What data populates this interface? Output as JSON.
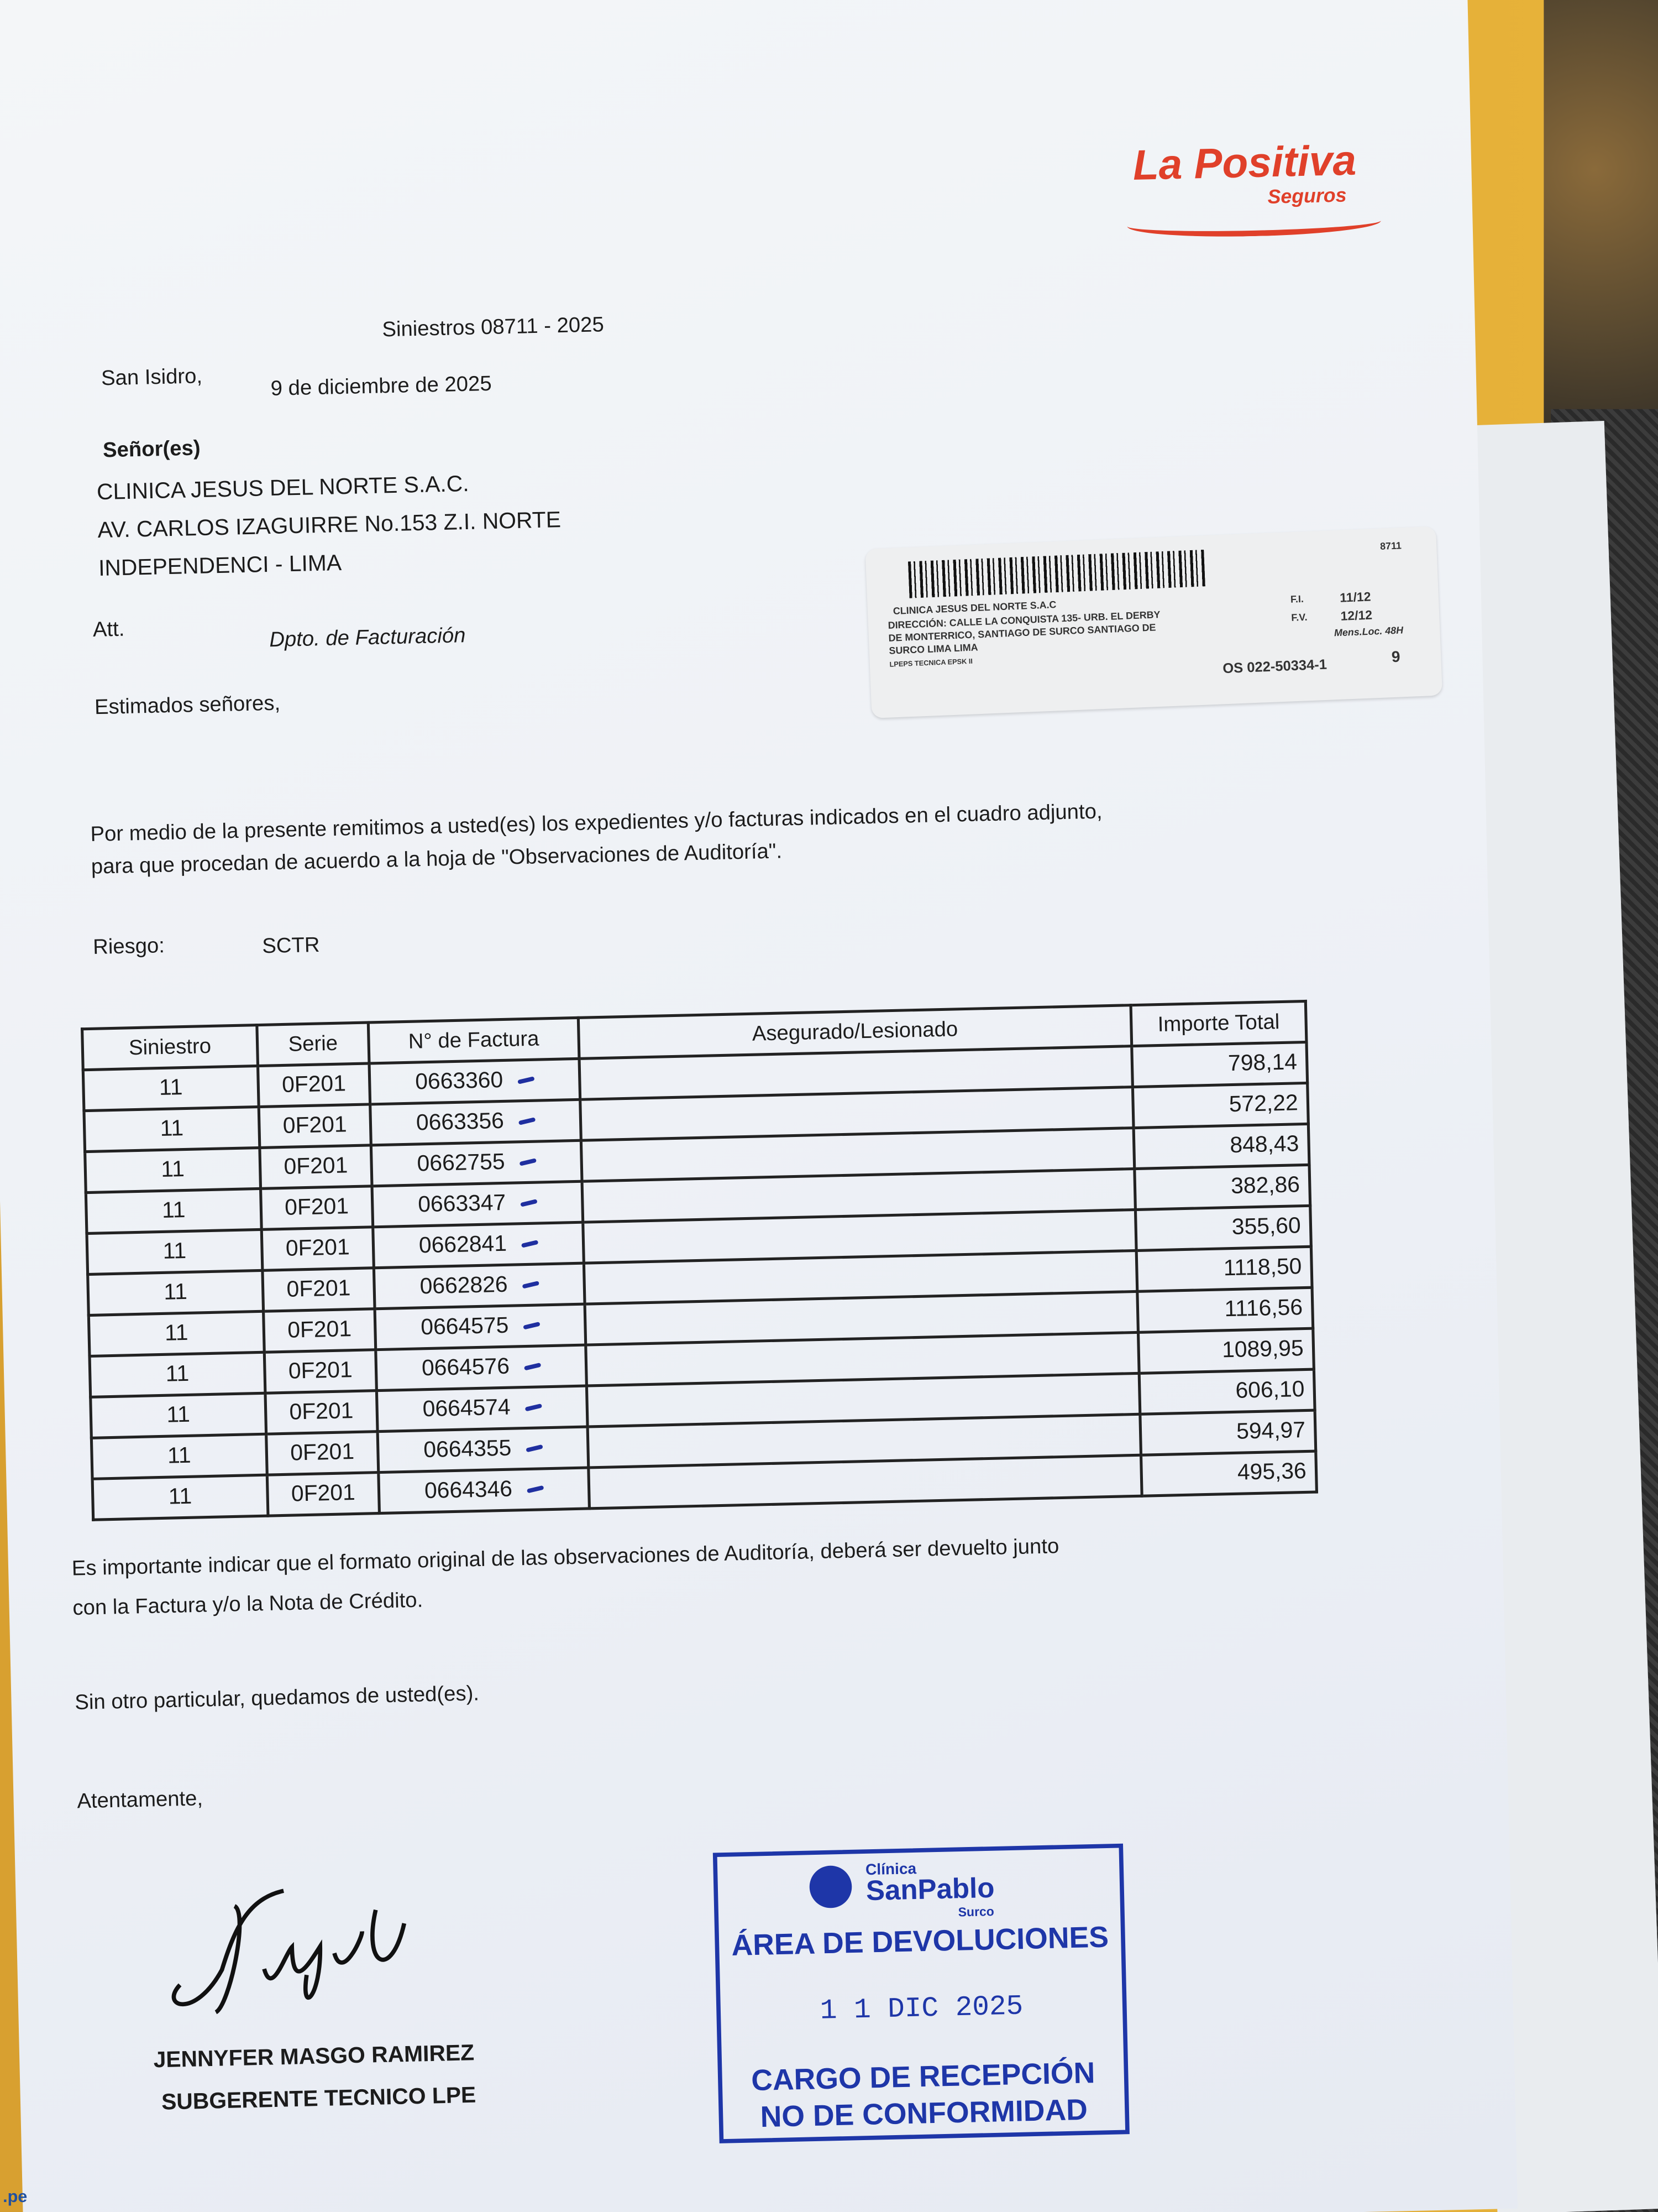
{
  "logo": {
    "brand": "La Positiva",
    "sub": "Seguros"
  },
  "letter": {
    "reference": "Siniestros 08711 - 2025",
    "place": "San Isidro,",
    "date": "9 de diciembre de 2025",
    "salutation_to": "Señor(es)",
    "recipient": [
      "CLINICA JESUS DEL NORTE S.A.C.",
      "AV. CARLOS IZAGUIRRE No.153 Z.I. NORTE",
      "INDEPENDENCI - LIMA"
    ],
    "att_label": "Att.",
    "att_value": "Dpto. de  Facturación",
    "greeting": "Estimados señores,",
    "body": [
      "Por medio de la presente remitimos a usted(es)  los expedientes y/o facturas  indicados en el cuadro adjunto,",
      "para que procedan de acuerdo a la hoja de \"Observaciones  de Auditoría\"."
    ],
    "risk_label": "Riesgo:",
    "risk_value": "SCTR",
    "note": [
      "Es importante indicar que el formato original de las observaciones de Auditoría, deberá  ser devuelto junto",
      "con la Factura y/o la  Nota de Crédito."
    ],
    "closing1": "Sin otro particular, quedamos de usted(es).",
    "closing2": "Atentamente,",
    "signer_name": "JENNYFER MASGO RAMIREZ",
    "signer_title": "SUBGERENTE TECNICO LPE"
  },
  "sticker": {
    "code": "8711",
    "clinic": "CLINICA JESUS DEL NORTE S.A.C",
    "address": [
      "DIRECCIÓN: CALLE LA CONQUISTA 135- URB. EL DERBY",
      "DE MONTERRICO, SANTIAGO DE SURCO  SANTIAGO DE",
      "SURCO LIMA LIMA"
    ],
    "footer": "LPEPS TECNICA EPSK II",
    "fi_label": "F.I.",
    "fi_value": "11/12",
    "fv_label": "F.V.",
    "fv_value": "12/12",
    "mens": "Mens.Loc. 48H",
    "os": "OS 022-50334-1",
    "num": "9"
  },
  "table": {
    "headers": [
      "Siniestro",
      "Serie",
      "N° de Factura",
      "Asegurado/Lesionado",
      "Importe Total"
    ],
    "rows": [
      [
        "11",
        "0F201",
        "0663360",
        "",
        "798,14"
      ],
      [
        "11",
        "0F201",
        "0663356",
        "",
        "572,22"
      ],
      [
        "11",
        "0F201",
        "0662755",
        "",
        "848,43"
      ],
      [
        "11",
        "0F201",
        "0663347",
        "",
        "382,86"
      ],
      [
        "11",
        "0F201",
        "0662841",
        "",
        "355,60"
      ],
      [
        "11",
        "0F201",
        "0662826",
        "",
        "1118,50"
      ],
      [
        "11",
        "0F201",
        "0664575",
        "",
        "1116,56"
      ],
      [
        "11",
        "0F201",
        "0664576",
        "",
        "1089,95"
      ],
      [
        "11",
        "0F201",
        "0664574",
        "",
        "606,10"
      ],
      [
        "11",
        "0F201",
        "0664355",
        "",
        "594,97"
      ],
      [
        "11",
        "0F201",
        "0664346",
        "",
        "495,36"
      ]
    ]
  },
  "stamp": {
    "clinic_small": "Clínica",
    "clinic_name": "SanPablo",
    "clinic_branch": "Surco",
    "area": "ÁREA DE DEVOLUCIONES",
    "date": "1 1  DIC  2025",
    "line1": "CARGO DE RECEPCIÓN",
    "line2": "NO DE CONFORMIDAD"
  },
  "colors": {
    "brand": "#e0402a",
    "stamp": "#1e36a8",
    "ink_ticks": "#1f2fa0"
  },
  "corner_text": ".pe"
}
